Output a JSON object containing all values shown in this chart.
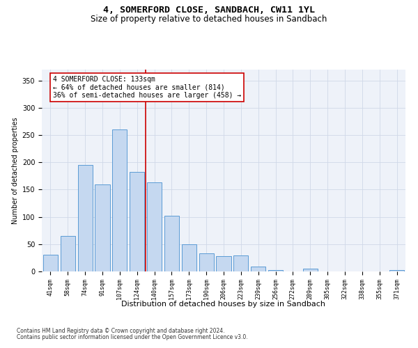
{
  "title": "4, SOMERFORD CLOSE, SANDBACH, CW11 1YL",
  "subtitle": "Size of property relative to detached houses in Sandbach",
  "xlabel": "Distribution of detached houses by size in Sandbach",
  "ylabel": "Number of detached properties",
  "categories": [
    "41sqm",
    "58sqm",
    "74sqm",
    "91sqm",
    "107sqm",
    "124sqm",
    "140sqm",
    "157sqm",
    "173sqm",
    "190sqm",
    "206sqm",
    "223sqm",
    "239sqm",
    "256sqm",
    "272sqm",
    "289sqm",
    "305sqm",
    "322sqm",
    "338sqm",
    "355sqm",
    "371sqm"
  ],
  "values": [
    30,
    65,
    195,
    160,
    260,
    183,
    163,
    102,
    50,
    33,
    28,
    29,
    9,
    3,
    0,
    5,
    0,
    0,
    0,
    0,
    3
  ],
  "bar_color": "#c5d8f0",
  "bar_edge_color": "#5b9bd5",
  "ref_line_label": "4 SOMERFORD CLOSE: 133sqm",
  "annotation_line1": "← 64% of detached houses are smaller (814)",
  "annotation_line2": "36% of semi-detached houses are larger (458) →",
  "annotation_box_color": "#ffffff",
  "annotation_box_edge": "#cc0000",
  "ref_line_color": "#cc0000",
  "grid_color": "#d0d8e8",
  "background_color": "#eef2f9",
  "footer_line1": "Contains HM Land Registry data © Crown copyright and database right 2024.",
  "footer_line2": "Contains public sector information licensed under the Open Government Licence v3.0.",
  "ylim": [
    0,
    370
  ],
  "title_fontsize": 9.5,
  "subtitle_fontsize": 8.5,
  "xlabel_fontsize": 8,
  "ylabel_fontsize": 7,
  "tick_fontsize": 6,
  "annotation_fontsize": 7,
  "footer_fontsize": 5.5
}
